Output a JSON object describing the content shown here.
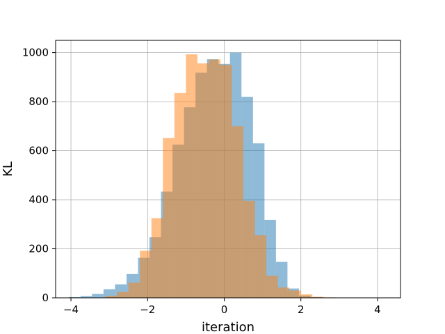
{
  "chart_data": {
    "type": "histogram",
    "title": "",
    "xlabel": "iteration",
    "ylabel": "KL",
    "xlim": [
      -4.4,
      4.6
    ],
    "ylim": [
      0,
      1050
    ],
    "xticks": [
      -4,
      -2,
      0,
      2,
      4
    ],
    "yticks": [
      0,
      200,
      400,
      600,
      800,
      1000
    ],
    "xtick_labels": [
      "−4",
      "−2",
      "0",
      "2",
      "4"
    ],
    "ytick_labels": [
      "0",
      "200",
      "400",
      "600",
      "800",
      "1000"
    ],
    "grid": true,
    "legend": "none",
    "series": [
      {
        "color": "#1f77b4",
        "alpha": 0.5,
        "bin_start": -4.05,
        "bin_width": 0.3,
        "counts": [
          3,
          7,
          16,
          35,
          55,
          97,
          163,
          247,
          433,
          625,
          777,
          918,
          973,
          954,
          1000,
          820,
          630,
          318,
          147,
          38,
          9,
          3
        ]
      },
      {
        "color": "#ff7f0e",
        "alpha": 0.5,
        "bin_start": -3.1,
        "bin_width": 0.3,
        "counts": [
          8,
          24,
          62,
          192,
          325,
          652,
          835,
          993,
          956,
          972,
          950,
          700,
          395,
          255,
          90,
          42,
          30,
          14,
          4,
          2
        ]
      }
    ]
  }
}
